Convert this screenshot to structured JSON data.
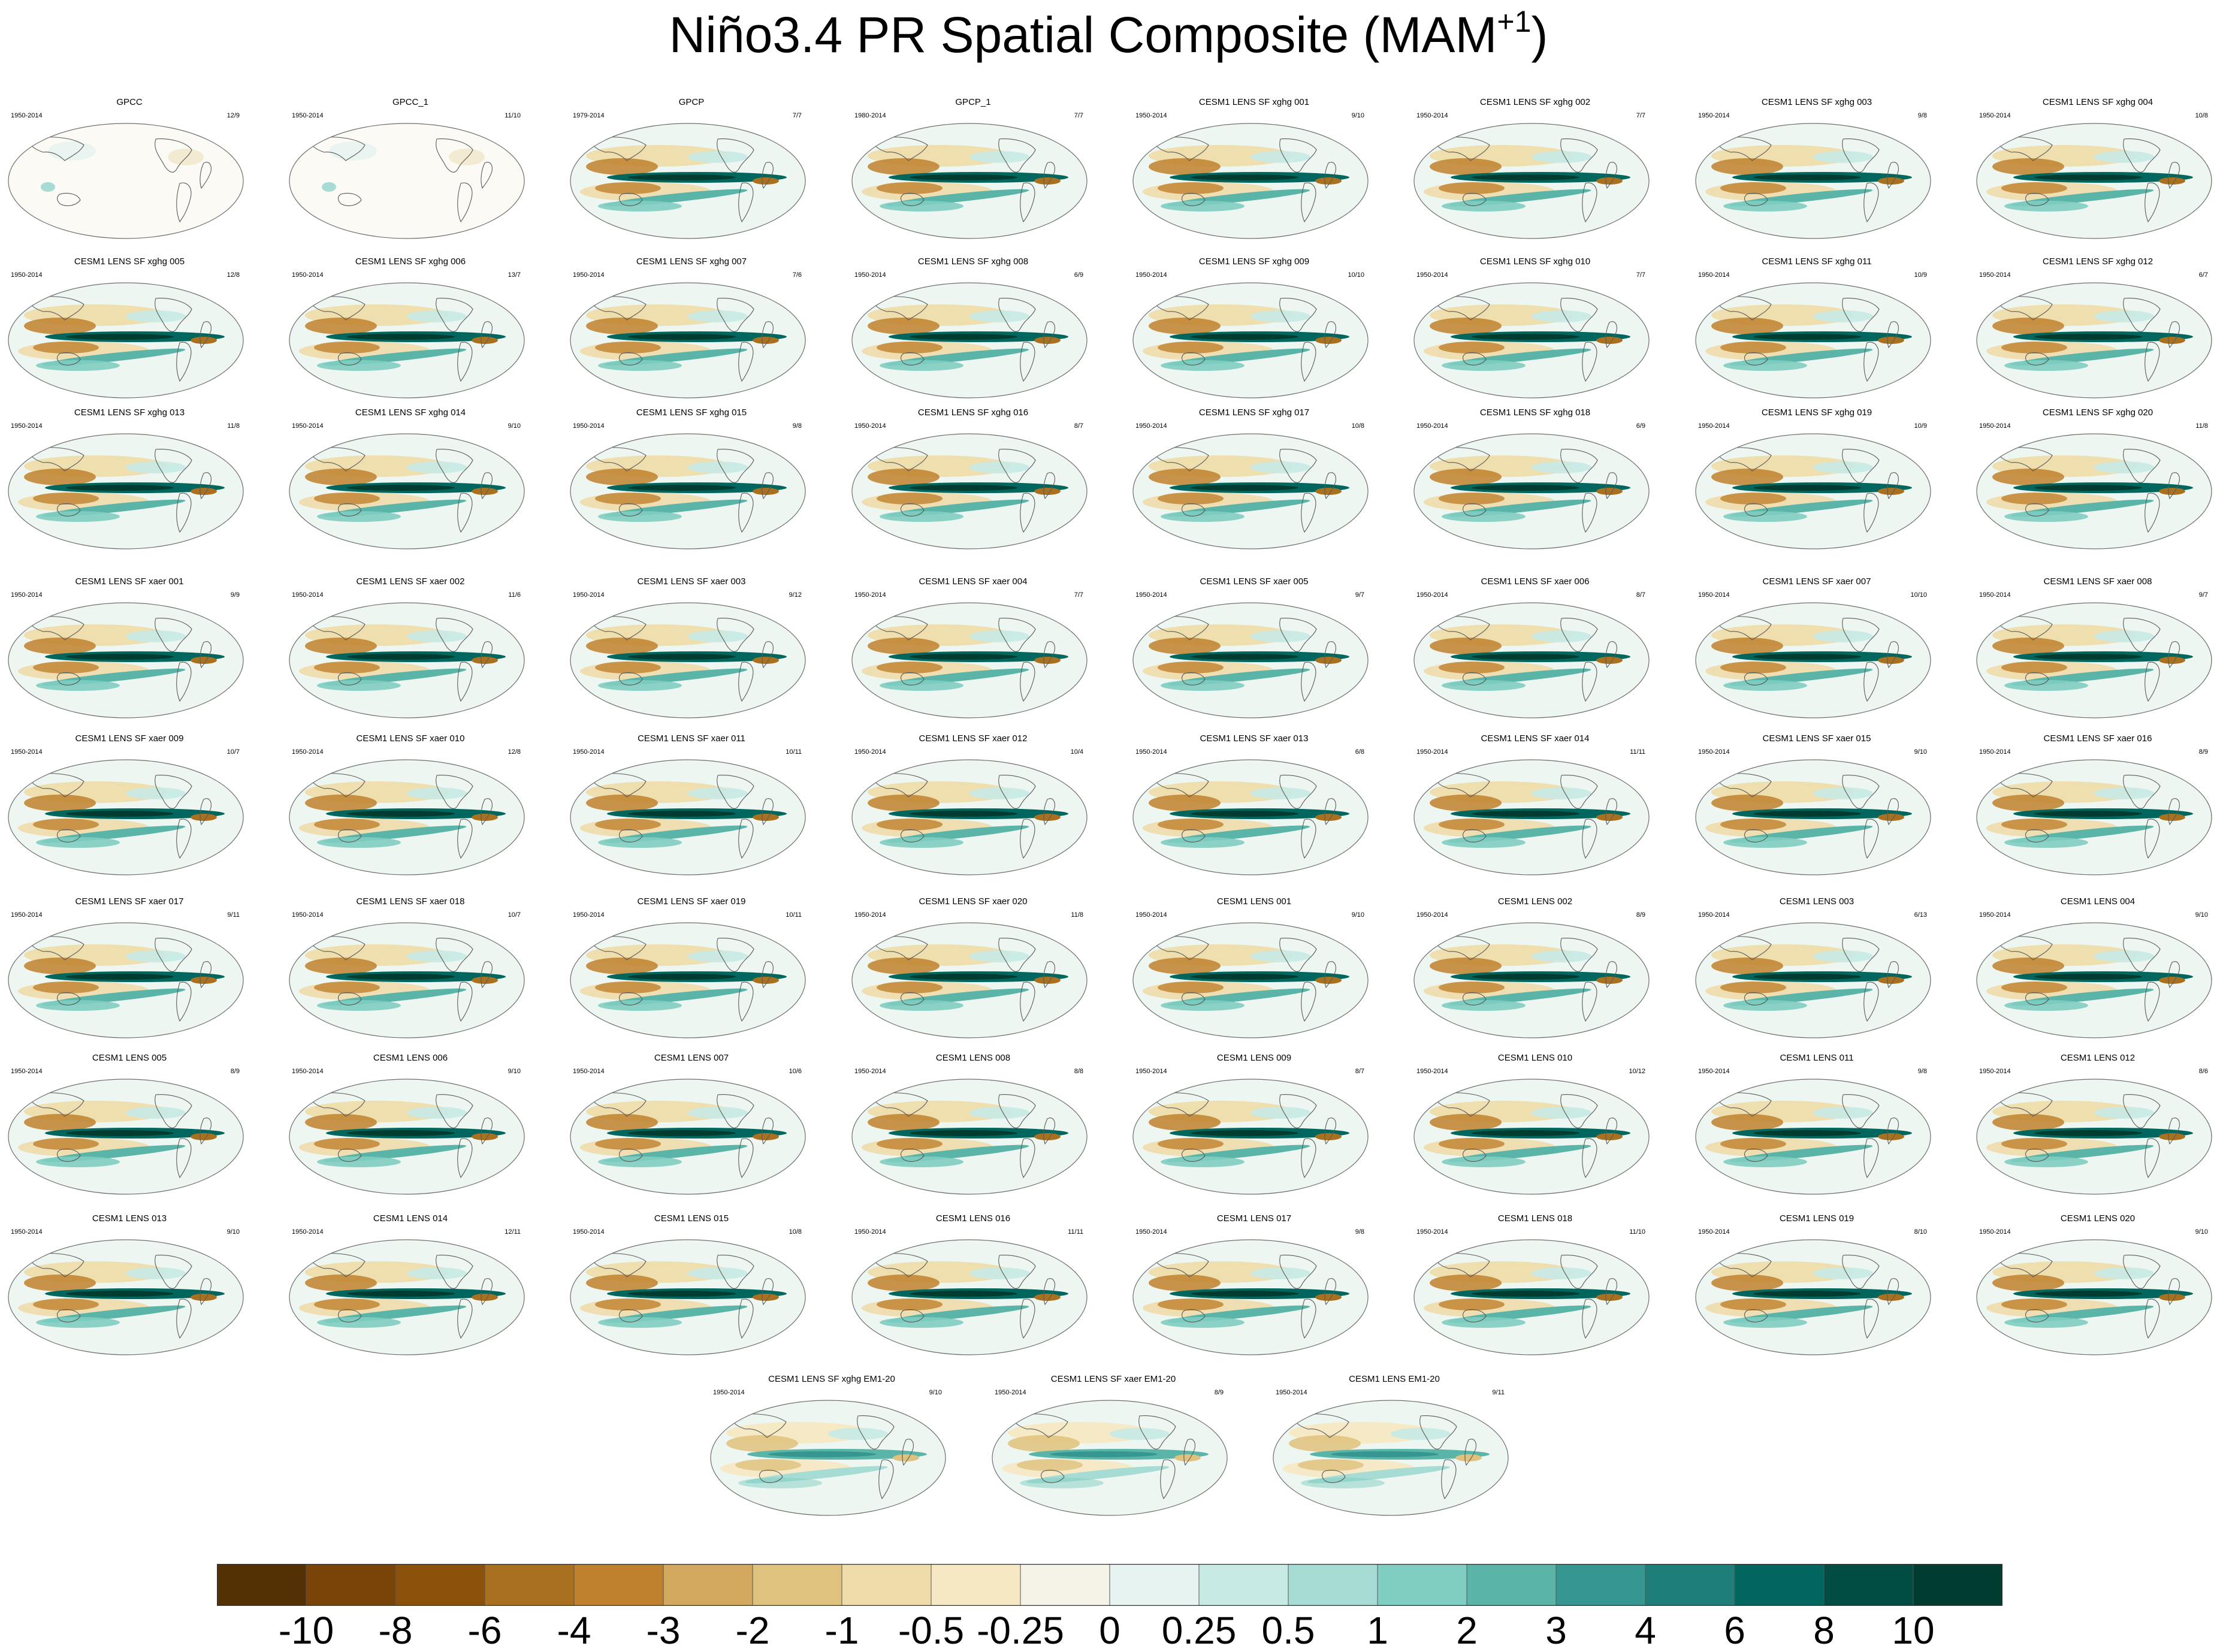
{
  "chart_data": {
    "type": "heatmap",
    "title": "Niño3.4 PR Spatial Composite (MAM",
    "title_superscript": "+1",
    "title_close": ")",
    "colorbar": {
      "labels": [
        "-10",
        "-8",
        "-6",
        "-4",
        "-3",
        "-2",
        "-1",
        "-0.5",
        "-0.25",
        "0",
        "0.25",
        "0.5",
        "1",
        "2",
        "3",
        "4",
        "6",
        "8",
        "10"
      ],
      "colors": [
        "#543005",
        "#7a4408",
        "#8c510a",
        "#a9701f",
        "#bf812d",
        "#d3a95f",
        "#dfc27d",
        "#eedcaa",
        "#f6e8c3",
        "#f5f2e8",
        "#e6f3f0",
        "#c7eae5",
        "#a6dcd3",
        "#80cdc1",
        "#5ab4a8",
        "#35978f",
        "#1d7f77",
        "#01665e",
        "#014d44",
        "#003c30"
      ]
    },
    "panels": [
      {
        "name": "GPCC",
        "period": "1950-2014",
        "count": "12/9",
        "style": "obs"
      },
      {
        "name": "GPCC_1",
        "period": "1950-2014",
        "count": "11/10",
        "style": "obs"
      },
      {
        "name": "GPCP",
        "period": "1979-2014",
        "count": "7/7",
        "style": "model"
      },
      {
        "name": "GPCP_1",
        "period": "1980-2014",
        "count": "7/7",
        "style": "model"
      },
      {
        "name": "CESM1 LENS SF xghg 001",
        "period": "1950-2014",
        "count": "9/10",
        "style": "model"
      },
      {
        "name": "CESM1 LENS SF xghg 002",
        "period": "1950-2014",
        "count": "7/7",
        "style": "model"
      },
      {
        "name": "CESM1 LENS SF xghg 003",
        "period": "1950-2014",
        "count": "9/8",
        "style": "model"
      },
      {
        "name": "CESM1 LENS SF xghg 004",
        "period": "1950-2014",
        "count": "10/8",
        "style": "model"
      },
      {
        "name": "CESM1 LENS SF xghg 005",
        "period": "1950-2014",
        "count": "12/8",
        "style": "model"
      },
      {
        "name": "CESM1 LENS SF xghg 006",
        "period": "1950-2014",
        "count": "13/7",
        "style": "model"
      },
      {
        "name": "CESM1 LENS SF xghg 007",
        "period": "1950-2014",
        "count": "7/6",
        "style": "model"
      },
      {
        "name": "CESM1 LENS SF xghg 008",
        "period": "1950-2014",
        "count": "6/9",
        "style": "model"
      },
      {
        "name": "CESM1 LENS SF xghg 009",
        "period": "1950-2014",
        "count": "10/10",
        "style": "model"
      },
      {
        "name": "CESM1 LENS SF xghg 010",
        "period": "1950-2014",
        "count": "7/7",
        "style": "model"
      },
      {
        "name": "CESM1 LENS SF xghg 011",
        "period": "1950-2014",
        "count": "10/9",
        "style": "model"
      },
      {
        "name": "CESM1 LENS SF xghg 012",
        "period": "1950-2014",
        "count": "6/7",
        "style": "model"
      },
      {
        "name": "CESM1 LENS SF xghg 013",
        "period": "1950-2014",
        "count": "11/8",
        "style": "model"
      },
      {
        "name": "CESM1 LENS SF xghg 014",
        "period": "1950-2014",
        "count": "9/10",
        "style": "model"
      },
      {
        "name": "CESM1 LENS SF xghg 015",
        "period": "1950-2014",
        "count": "9/8",
        "style": "model"
      },
      {
        "name": "CESM1 LENS SF xghg 016",
        "period": "1950-2014",
        "count": "8/7",
        "style": "model"
      },
      {
        "name": "CESM1 LENS SF xghg 017",
        "period": "1950-2014",
        "count": "10/8",
        "style": "model"
      },
      {
        "name": "CESM1 LENS SF xghg 018",
        "period": "1950-2014",
        "count": "6/9",
        "style": "model"
      },
      {
        "name": "CESM1 LENS SF xghg 019",
        "period": "1950-2014",
        "count": "10/9",
        "style": "model"
      },
      {
        "name": "CESM1 LENS SF xghg 020",
        "period": "1950-2014",
        "count": "11/8",
        "style": "model"
      },
      {
        "name": "CESM1 LENS SF xaer 001",
        "period": "1950-2014",
        "count": "9/9",
        "style": "model"
      },
      {
        "name": "CESM1 LENS SF xaer 002",
        "period": "1950-2014",
        "count": "11/6",
        "style": "model"
      },
      {
        "name": "CESM1 LENS SF xaer 003",
        "period": "1950-2014",
        "count": "9/12",
        "style": "model"
      },
      {
        "name": "CESM1 LENS SF xaer 004",
        "period": "1950-2014",
        "count": "7/7",
        "style": "model"
      },
      {
        "name": "CESM1 LENS SF xaer 005",
        "period": "1950-2014",
        "count": "9/7",
        "style": "model"
      },
      {
        "name": "CESM1 LENS SF xaer 006",
        "period": "1950-2014",
        "count": "8/7",
        "style": "model"
      },
      {
        "name": "CESM1 LENS SF xaer 007",
        "period": "1950-2014",
        "count": "10/10",
        "style": "model"
      },
      {
        "name": "CESM1 LENS SF xaer 008",
        "period": "1950-2014",
        "count": "9/7",
        "style": "model"
      },
      {
        "name": "CESM1 LENS SF xaer 009",
        "period": "1950-2014",
        "count": "10/7",
        "style": "model"
      },
      {
        "name": "CESM1 LENS SF xaer 010",
        "period": "1950-2014",
        "count": "12/8",
        "style": "model"
      },
      {
        "name": "CESM1 LENS SF xaer 011",
        "period": "1950-2014",
        "count": "10/11",
        "style": "model"
      },
      {
        "name": "CESM1 LENS SF xaer 012",
        "period": "1950-2014",
        "count": "10/4",
        "style": "model"
      },
      {
        "name": "CESM1 LENS SF xaer 013",
        "period": "1950-2014",
        "count": "6/8",
        "style": "model"
      },
      {
        "name": "CESM1 LENS SF xaer 014",
        "period": "1950-2014",
        "count": "11/11",
        "style": "model"
      },
      {
        "name": "CESM1 LENS SF xaer 015",
        "period": "1950-2014",
        "count": "9/10",
        "style": "model"
      },
      {
        "name": "CESM1 LENS SF xaer 016",
        "period": "1950-2014",
        "count": "8/9",
        "style": "model"
      },
      {
        "name": "CESM1 LENS SF xaer 017",
        "period": "1950-2014",
        "count": "9/11",
        "style": "model"
      },
      {
        "name": "CESM1 LENS SF xaer 018",
        "period": "1950-2014",
        "count": "10/7",
        "style": "model"
      },
      {
        "name": "CESM1 LENS SF xaer 019",
        "period": "1950-2014",
        "count": "10/11",
        "style": "model"
      },
      {
        "name": "CESM1 LENS SF xaer 020",
        "period": "1950-2014",
        "count": "11/8",
        "style": "model"
      },
      {
        "name": "CESM1 LENS 001",
        "period": "1950-2014",
        "count": "9/10",
        "style": "model"
      },
      {
        "name": "CESM1 LENS 002",
        "period": "1950-2014",
        "count": "8/9",
        "style": "model"
      },
      {
        "name": "CESM1 LENS 003",
        "period": "1950-2014",
        "count": "6/13",
        "style": "model"
      },
      {
        "name": "CESM1 LENS 004",
        "period": "1950-2014",
        "count": "9/10",
        "style": "model"
      },
      {
        "name": "CESM1 LENS 005",
        "period": "1950-2014",
        "count": "8/9",
        "style": "model"
      },
      {
        "name": "CESM1 LENS 006",
        "period": "1950-2014",
        "count": "9/10",
        "style": "model"
      },
      {
        "name": "CESM1 LENS 007",
        "period": "1950-2014",
        "count": "10/6",
        "style": "model"
      },
      {
        "name": "CESM1 LENS 008",
        "period": "1950-2014",
        "count": "8/8",
        "style": "model"
      },
      {
        "name": "CESM1 LENS 009",
        "period": "1950-2014",
        "count": "8/7",
        "style": "model"
      },
      {
        "name": "CESM1 LENS 010",
        "period": "1950-2014",
        "count": "10/12",
        "style": "model"
      },
      {
        "name": "CESM1 LENS 011",
        "period": "1950-2014",
        "count": "9/8",
        "style": "model"
      },
      {
        "name": "CESM1 LENS 012",
        "period": "1950-2014",
        "count": "8/6",
        "style": "model"
      },
      {
        "name": "CESM1 LENS 013",
        "period": "1950-2014",
        "count": "9/10",
        "style": "model"
      },
      {
        "name": "CESM1 LENS 014",
        "period": "1950-2014",
        "count": "12/11",
        "style": "model"
      },
      {
        "name": "CESM1 LENS 015",
        "period": "1950-2014",
        "count": "10/8",
        "style": "model"
      },
      {
        "name": "CESM1 LENS 016",
        "period": "1950-2014",
        "count": "11/11",
        "style": "model"
      },
      {
        "name": "CESM1 LENS 017",
        "period": "1950-2014",
        "count": "9/8",
        "style": "model"
      },
      {
        "name": "CESM1 LENS 018",
        "period": "1950-2014",
        "count": "11/10",
        "style": "model"
      },
      {
        "name": "CESM1 LENS 019",
        "period": "1950-2014",
        "count": "8/10",
        "style": "model"
      },
      {
        "name": "CESM1 LENS 020",
        "period": "1950-2014",
        "count": "9/10",
        "style": "model"
      },
      {
        "name": "CESM1 LENS SF xghg EM1-20",
        "period": "1950-2014",
        "count": "9/10",
        "style": "mean"
      },
      {
        "name": "CESM1 LENS SF xaer EM1-20",
        "period": "1950-2014",
        "count": "8/9",
        "style": "mean"
      },
      {
        "name": "CESM1 LENS EM1-20",
        "period": "1950-2014",
        "count": "9/11",
        "style": "mean"
      }
    ]
  }
}
